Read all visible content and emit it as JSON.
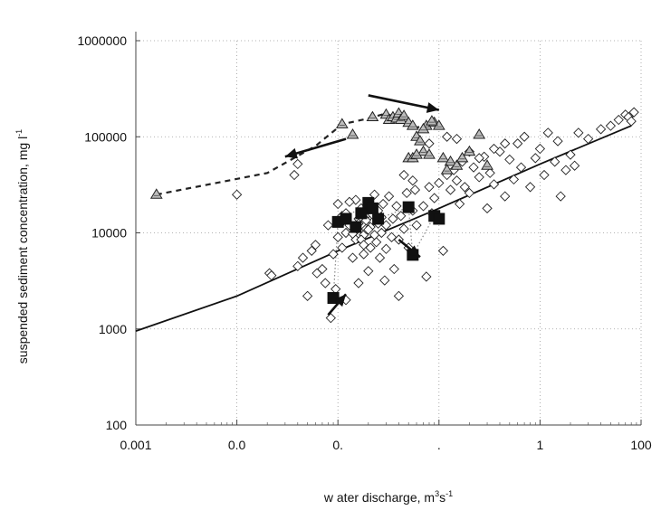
{
  "chart_data": {
    "type": "scatter",
    "x_scale": "log",
    "y_scale": "log",
    "xlim": [
      0.001,
      100
    ],
    "ylim": [
      100,
      1000000
    ],
    "grid": true,
    "x_tick_labels": [
      "0.001",
      "0.0",
      "0.",
      ".",
      "1",
      "100"
    ],
    "y_tick_labels": [
      "1000000",
      "100000",
      "10000",
      "1000",
      "100"
    ],
    "xlabel": {
      "base": "w ater discharge, m",
      "sup1": "3",
      "mid": "s",
      "sup2": "-1"
    },
    "ylabel": {
      "base": "suspended sediment concentration, mg l",
      "sup": "-1"
    },
    "series": [
      {
        "marker": "diamond",
        "points": [
          [
            0.021,
            3800
          ],
          [
            0.022,
            3600
          ],
          [
            0.01,
            25000
          ],
          [
            0.037,
            40000
          ],
          [
            0.04,
            4500
          ],
          [
            0.045,
            5500
          ],
          [
            0.05,
            2200
          ],
          [
            0.055,
            6500
          ],
          [
            0.06,
            7500
          ],
          [
            0.062,
            3800
          ],
          [
            0.07,
            4200
          ],
          [
            0.075,
            3000
          ],
          [
            0.08,
            12000
          ],
          [
            0.085,
            1300
          ],
          [
            0.09,
            6000
          ],
          [
            0.095,
            2600
          ],
          [
            0.1,
            9000
          ],
          [
            0.1,
            20000
          ],
          [
            0.11,
            15000
          ],
          [
            0.11,
            7000
          ],
          [
            0.12,
            2000
          ],
          [
            0.12,
            10000
          ],
          [
            0.13,
            12000
          ],
          [
            0.14,
            5500
          ],
          [
            0.15,
            8500
          ],
          [
            0.15,
            22000
          ],
          [
            0.16,
            3000
          ],
          [
            0.16,
            14000
          ],
          [
            0.17,
            18000
          ],
          [
            0.18,
            6000
          ],
          [
            0.18,
            9500
          ],
          [
            0.19,
            11000
          ],
          [
            0.2,
            16000
          ],
          [
            0.2,
            4000
          ],
          [
            0.21,
            7000
          ],
          [
            0.22,
            13000
          ],
          [
            0.23,
            25000
          ],
          [
            0.24,
            8000
          ],
          [
            0.25,
            17000
          ],
          [
            0.26,
            5500
          ],
          [
            0.27,
            10000
          ],
          [
            0.28,
            20000
          ],
          [
            0.29,
            3200
          ],
          [
            0.3,
            6800
          ],
          [
            0.3,
            12000
          ],
          [
            0.32,
            24000
          ],
          [
            0.34,
            9000
          ],
          [
            0.35,
            14000
          ],
          [
            0.36,
            4200
          ],
          [
            0.38,
            19000
          ],
          [
            0.4,
            2200
          ],
          [
            0.4,
            8500
          ],
          [
            0.42,
            15000
          ],
          [
            0.45,
            11000
          ],
          [
            0.48,
            26000
          ],
          [
            0.5,
            7000
          ],
          [
            0.55,
            17000
          ],
          [
            0.58,
            28000
          ],
          [
            0.6,
            12000
          ],
          [
            0.7,
            19000
          ],
          [
            0.75,
            3500
          ],
          [
            0.8,
            30000
          ],
          [
            0.85,
            16000
          ],
          [
            0.9,
            23000
          ],
          [
            1.0,
            33000
          ],
          [
            1.1,
            6500
          ],
          [
            1.2,
            40000
          ],
          [
            1.3,
            28000
          ],
          [
            1.4,
            45000
          ],
          [
            1.5,
            35000
          ],
          [
            1.6,
            20000
          ],
          [
            1.7,
            55000
          ],
          [
            1.8,
            30000
          ],
          [
            2.0,
            26000
          ],
          [
            2.2,
            48000
          ],
          [
            2.5,
            38000
          ],
          [
            2.8,
            62000
          ],
          [
            3.0,
            18000
          ],
          [
            3.2,
            42000
          ],
          [
            3.5,
            32000
          ],
          [
            4.0,
            70000
          ],
          [
            4.5,
            24000
          ],
          [
            5.0,
            58000
          ],
          [
            5.5,
            36000
          ],
          [
            6.0,
            85000
          ],
          [
            6.5,
            48000
          ],
          [
            7.0,
            100000
          ],
          [
            8.0,
            30000
          ],
          [
            9.0,
            60000
          ],
          [
            10,
            75000
          ],
          [
            11,
            40000
          ],
          [
            12,
            110000
          ],
          [
            14,
            55000
          ],
          [
            15,
            90000
          ],
          [
            16,
            24000
          ],
          [
            18,
            45000
          ],
          [
            20,
            65000
          ],
          [
            22,
            50000
          ],
          [
            24,
            110000
          ],
          [
            2.5,
            60000
          ],
          [
            3.5,
            75000
          ],
          [
            4.5,
            85000
          ],
          [
            2.0,
            70000
          ],
          [
            1.5,
            95000
          ],
          [
            0.45,
            40000
          ],
          [
            0.55,
            35000
          ],
          [
            1.2,
            100000
          ],
          [
            0.8,
            85000
          ],
          [
            0.04,
            52000
          ],
          [
            50,
            130000
          ],
          [
            60,
            150000
          ],
          [
            70,
            170000
          ],
          [
            75,
            160000
          ],
          [
            80,
            145000
          ],
          [
            85,
            180000
          ],
          [
            40,
            120000
          ],
          [
            30,
            95000
          ],
          [
            0.15,
            10500
          ],
          [
            0.17,
            8500
          ],
          [
            0.19,
            13500
          ],
          [
            0.21,
            11500
          ],
          [
            0.23,
            9500
          ],
          [
            0.18,
            7500
          ],
          [
            0.16,
            12500
          ],
          [
            0.14,
            9800
          ],
          [
            0.2,
            10800
          ],
          [
            0.22,
            15500
          ],
          [
            0.12,
            16000
          ],
          [
            0.13,
            21000
          ],
          [
            0.11,
            13000
          ],
          [
            0.25,
            12500
          ],
          [
            0.27,
            14500
          ]
        ]
      },
      {
        "marker": "triangle",
        "points": [
          [
            0.0016,
            25000
          ],
          [
            0.11,
            135000
          ],
          [
            0.14,
            105000
          ],
          [
            0.22,
            160000
          ],
          [
            0.3,
            170000
          ],
          [
            0.32,
            150000
          ],
          [
            0.35,
            160000
          ],
          [
            0.38,
            155000
          ],
          [
            0.4,
            175000
          ],
          [
            0.42,
            150000
          ],
          [
            0.45,
            165000
          ],
          [
            0.5,
            140000
          ],
          [
            0.55,
            130000
          ],
          [
            0.6,
            100000
          ],
          [
            0.65,
            90000
          ],
          [
            0.7,
            70000
          ],
          [
            0.5,
            60000
          ],
          [
            0.55,
            60000
          ],
          [
            0.6,
            65000
          ],
          [
            0.75,
            130000
          ],
          [
            0.8,
            65000
          ],
          [
            0.9,
            140000
          ],
          [
            1.0,
            130000
          ],
          [
            1.1,
            60000
          ],
          [
            1.3,
            55000
          ],
          [
            1.5,
            50000
          ],
          [
            1.7,
            60000
          ],
          [
            2.0,
            70000
          ],
          [
            2.5,
            105000
          ],
          [
            3.0,
            50000
          ],
          [
            0.7,
            120000
          ],
          [
            0.85,
            145000
          ],
          [
            1.2,
            45000
          ]
        ]
      },
      {
        "marker": "square",
        "points": [
          [
            0.09,
            2100
          ],
          [
            0.1,
            13000
          ],
          [
            0.12,
            14000
          ],
          [
            0.15,
            11500
          ],
          [
            0.17,
            16000
          ],
          [
            0.2,
            20500
          ],
          [
            0.22,
            18000
          ],
          [
            0.25,
            14000
          ],
          [
            0.5,
            18500
          ],
          [
            0.55,
            5900
          ],
          [
            0.9,
            15000
          ],
          [
            1.0,
            14000
          ]
        ]
      }
    ],
    "curves": [
      {
        "style": "solid",
        "points": [
          [
            0.001,
            950
          ],
          [
            0.01,
            2200
          ],
          [
            0.1,
            6500
          ],
          [
            1,
            18000
          ],
          [
            10,
            52000
          ],
          [
            80,
            130000
          ]
        ]
      },
      {
        "style": "dashed",
        "points": [
          [
            0.0016,
            25000
          ],
          [
            0.02,
            42000
          ],
          [
            0.06,
            80000
          ],
          [
            0.11,
            135000
          ],
          [
            0.2,
            155000
          ],
          [
            0.3,
            175000
          ],
          [
            0.6,
            125000
          ],
          [
            0.75,
            130000
          ],
          [
            1.0,
            132000
          ]
        ]
      },
      {
        "style": "dotted",
        "points": [
          [
            0.09,
            2100
          ],
          [
            0.1,
            13000
          ],
          [
            0.2,
            20500
          ],
          [
            0.25,
            14000
          ],
          [
            0.5,
            18500
          ],
          [
            0.55,
            5900
          ],
          [
            0.9,
            15000
          ],
          [
            1.0,
            14000
          ]
        ]
      }
    ],
    "annotations": [
      {
        "type": "arrow",
        "from": [
          0.12,
          95000
        ],
        "to": [
          0.03,
          62000
        ]
      },
      {
        "type": "arrow",
        "from": [
          0.2,
          270000
        ],
        "to": [
          1.0,
          190000
        ]
      },
      {
        "type": "arrow",
        "from": [
          0.08,
          1400
        ],
        "to": [
          0.12,
          2300
        ]
      },
      {
        "type": "arrow",
        "from": [
          0.4,
          8500
        ],
        "to": [
          0.65,
          5600
        ]
      }
    ]
  }
}
